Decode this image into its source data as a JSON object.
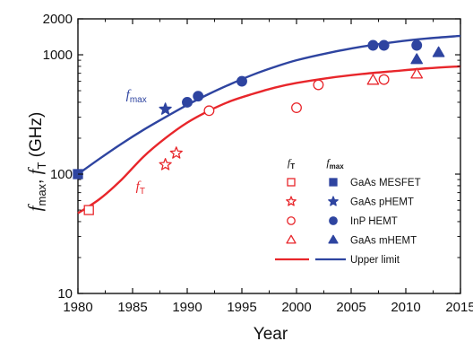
{
  "chart_data": {
    "type": "scatter",
    "xlabel": "Year",
    "ylabel": {
      "main1": "f",
      "sub1": "max",
      "sep": ", ",
      "main2": "f",
      "sub2": "T",
      "unit": " (GHz)"
    },
    "xlim": [
      1980,
      2015
    ],
    "ylim": [
      10,
      2000
    ],
    "yscale": "log",
    "xticks": [
      "1980",
      "1985",
      "1990",
      "1995",
      "2000",
      "2005",
      "2010",
      "2015"
    ],
    "yticks": [
      {
        "value": 10,
        "label": "10"
      },
      {
        "value": 100,
        "label": "100"
      },
      {
        "value": 1000,
        "label": "1000"
      },
      {
        "value": 2000,
        "label": "2000"
      }
    ],
    "colors": {
      "fmax": "#2e44a0",
      "fT": "#e8262b"
    },
    "curves": [
      {
        "name": "fmax",
        "color": "#2e44a0",
        "x": [
          1980,
          1982,
          1984,
          1986,
          1988,
          1990,
          1992,
          1994,
          1996,
          1998,
          2000,
          2003,
          2006,
          2009,
          2012,
          2015
        ],
        "y": [
          100,
          135,
          180,
          235,
          300,
          380,
          470,
          570,
          680,
          790,
          900,
          1040,
          1170,
          1280,
          1370,
          1440
        ]
      },
      {
        "name": "fT",
        "color": "#e8262b",
        "x": [
          1980,
          1982,
          1984,
          1986,
          1988,
          1990,
          1992,
          1994,
          1996,
          1998,
          2000,
          2003,
          2006,
          2009,
          2012,
          2015
        ],
        "y": [
          47,
          62,
          90,
          140,
          200,
          270,
          340,
          410,
          470,
          530,
          580,
          640,
          690,
          730,
          770,
          800
        ]
      }
    ],
    "series": [
      {
        "name": "GaAs MESFET",
        "metric": "fT",
        "marker": "square",
        "filled": false,
        "color": "#e8262b",
        "points": [
          {
            "x": 1981,
            "y": 50
          }
        ]
      },
      {
        "name": "GaAs MESFET",
        "metric": "fmax",
        "marker": "square",
        "filled": true,
        "color": "#2e44a0",
        "points": [
          {
            "x": 1980,
            "y": 100
          }
        ]
      },
      {
        "name": "GaAs pHEMT",
        "metric": "fT",
        "marker": "star",
        "filled": false,
        "color": "#e8262b",
        "points": [
          {
            "x": 1988,
            "y": 120
          },
          {
            "x": 1989,
            "y": 150
          }
        ]
      },
      {
        "name": "GaAs pHEMT",
        "metric": "fmax",
        "marker": "star",
        "filled": true,
        "color": "#2e44a0",
        "points": [
          {
            "x": 1988,
            "y": 350
          }
        ]
      },
      {
        "name": "InP HEMT",
        "metric": "fT",
        "marker": "circle",
        "filled": false,
        "color": "#e8262b",
        "points": [
          {
            "x": 1992,
            "y": 340
          },
          {
            "x": 2000,
            "y": 360
          },
          {
            "x": 2002,
            "y": 560
          },
          {
            "x": 2008,
            "y": 620
          }
        ]
      },
      {
        "name": "InP HEMT",
        "metric": "fmax",
        "marker": "circle",
        "filled": true,
        "color": "#2e44a0",
        "points": [
          {
            "x": 1990,
            "y": 400
          },
          {
            "x": 1991,
            "y": 450
          },
          {
            "x": 1995,
            "y": 600
          },
          {
            "x": 2007,
            "y": 1200
          },
          {
            "x": 2008,
            "y": 1200
          },
          {
            "x": 2011,
            "y": 1200
          }
        ]
      },
      {
        "name": "GaAs mHEMT",
        "metric": "fT",
        "marker": "triangle",
        "filled": false,
        "color": "#e8262b",
        "points": [
          {
            "x": 2007,
            "y": 610
          },
          {
            "x": 2011,
            "y": 688
          }
        ]
      },
      {
        "name": "GaAs mHEMT",
        "metric": "fmax",
        "marker": "triangle",
        "filled": true,
        "color": "#2e44a0",
        "points": [
          {
            "x": 2011,
            "y": 910
          },
          {
            "x": 2013,
            "y": 1040
          }
        ]
      }
    ],
    "annotations": {
      "fmax": {
        "main": "f",
        "sub": "max"
      },
      "fT": {
        "main": "f",
        "sub": "T"
      }
    },
    "legend": {
      "position": "lower-right",
      "col_headers": [
        {
          "main": "f",
          "sub": "T"
        },
        {
          "main": "f",
          "sub": "max"
        }
      ],
      "entries": [
        {
          "label": "GaAs MESFET",
          "marker": "square"
        },
        {
          "label": "GaAs pHEMT",
          "marker": "star"
        },
        {
          "label": "InP HEMT",
          "marker": "circle"
        },
        {
          "label": "GaAs mHEMT",
          "marker": "triangle"
        },
        {
          "label": "Upper limit",
          "marker": "line"
        }
      ]
    },
    "grid": false
  }
}
